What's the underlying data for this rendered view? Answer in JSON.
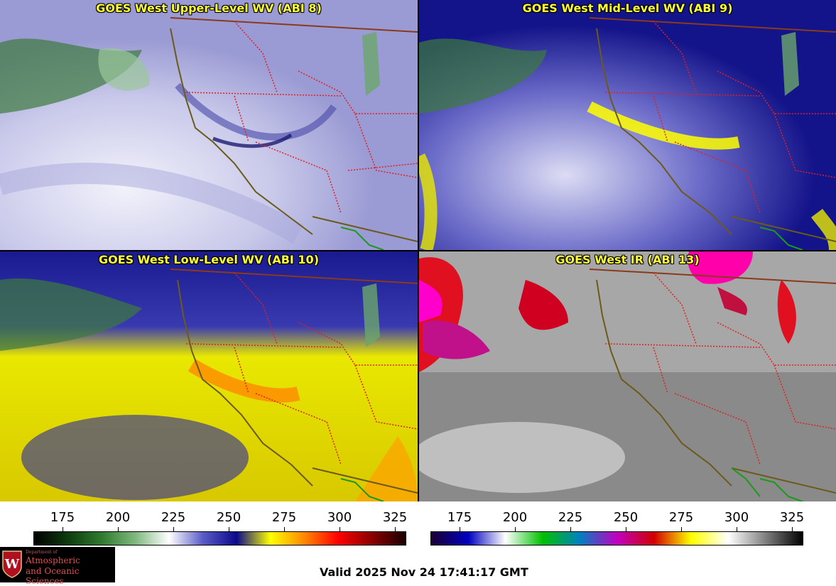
{
  "panels": [
    {
      "title": "GOES West Upper-Level WV (ABI 8)",
      "scheme": "wv-upper"
    },
    {
      "title": "GOES West Mid-Level WV (ABI 9)",
      "scheme": "wv-mid"
    },
    {
      "title": "GOES West Low-Level WV (ABI 10)",
      "scheme": "wv-low"
    },
    {
      "title": "GOES West IR (ABI 13)",
      "scheme": "ir"
    }
  ],
  "colorbar_wv": {
    "ticks": [
      "175",
      "200",
      "225",
      "250",
      "275",
      "300",
      "325"
    ],
    "stops": [
      "#000000",
      "#0e3a0e",
      "#2f7a2f",
      "#7fb87f",
      "#ffffff",
      "#5a5ac8",
      "#0a0a8a",
      "#ffff00",
      "#ff8800",
      "#ff0000",
      "#8a0000",
      "#1a0000"
    ]
  },
  "colorbar_ir": {
    "ticks": [
      "175",
      "200",
      "225",
      "250",
      "275",
      "300",
      "325"
    ],
    "stops": [
      "#1a0030",
      "#0000c0",
      "#ffffff",
      "#00c000",
      "#0080c0",
      "#c000c0",
      "#d00000",
      "#ffff00",
      "#ffffff",
      "#808080",
      "#000000"
    ]
  },
  "logo": {
    "dept": "Department of",
    "line1": "Atmospheric",
    "line2": "and Oceanic Sciences",
    "crest": "W"
  },
  "valid": "Valid 2025 Nov 24 17:41:17 GMT",
  "colors": {
    "title": "#ffff33",
    "border_state": "#e02020",
    "coast": "#6b5a1a",
    "mexico": "#1a9a1a"
  }
}
